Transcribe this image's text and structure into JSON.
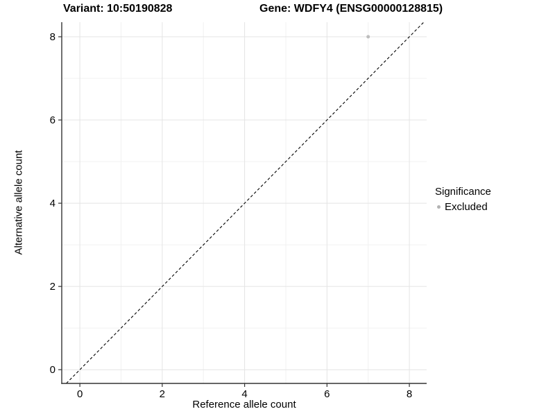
{
  "chart_data": {
    "type": "scatter",
    "title_left": "Variant: 10:50190828",
    "title_right": "Gene: WDFY4 (ENSG00000128815)",
    "xlabel": "Reference allele count",
    "ylabel": "Alternative allele count",
    "xlim": [
      -0.44,
      8.42
    ],
    "ylim": [
      -0.33,
      8.35
    ],
    "x_ticks": [
      0,
      2,
      4,
      6,
      8
    ],
    "y_ticks": [
      0,
      2,
      4,
      6,
      8
    ],
    "minor_gridlines_x": [
      1,
      3,
      5,
      7
    ],
    "minor_gridlines_y": [
      1,
      3,
      5,
      7
    ],
    "grid": true,
    "reference_line": {
      "style": "dashed",
      "slope": 1,
      "intercept": 0
    },
    "series": [
      {
        "name": "Excluded",
        "color": "#bdbdbd",
        "points": [
          [
            7,
            8
          ]
        ]
      }
    ],
    "legend": {
      "position": "right",
      "title": "Significance",
      "entries": [
        {
          "label": "Excluded",
          "color": "#b3b3b3"
        }
      ]
    }
  },
  "colors": {
    "background": "#ffffff",
    "axis_line": "#333333",
    "grid_major": "#e4e4e4",
    "grid_minor": "#f1f1f1",
    "reference_line": "#000000",
    "point": "#bdbdbd",
    "text": "#000000"
  }
}
